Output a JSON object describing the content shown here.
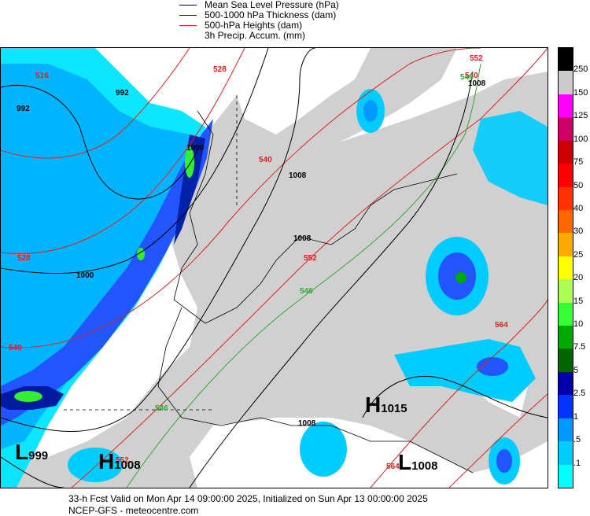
{
  "legend": {
    "items": [
      {
        "label": "Mean Sea Level Pressure (hPa)",
        "color": "#000000"
      },
      {
        "label": "500-1000 hPa Thickness (dam)",
        "color": "#0000cc"
      },
      {
        "label": "500-hPa Heights (dam)",
        "color": "#e02020"
      },
      {
        "label": "3h Precip. Accum. (mm)",
        "color": ""
      }
    ]
  },
  "colorbar": {
    "labels": [
      "250",
      "150",
      "125",
      "100",
      "75",
      "50",
      "40",
      "30",
      "25",
      "20",
      "15",
      "10",
      "7.5",
      "5",
      "2.5",
      "1",
      ".5",
      ".1"
    ],
    "colors": [
      "#000000",
      "#cccccc",
      "#ff00ff",
      "#cc0066",
      "#cc0000",
      "#ff0000",
      "#ff3300",
      "#ff6600",
      "#ffaa00",
      "#ffff00",
      "#aaff55",
      "#33ff33",
      "#00aa00",
      "#006600",
      "#0000aa",
      "#0033ff",
      "#0099ff",
      "#00ccff",
      "#00ffff"
    ]
  },
  "map_labels": {
    "isobars": [
      "992",
      "992",
      "1000",
      "1000",
      "1008",
      "1008",
      "1008",
      "1008"
    ],
    "heights": [
      "516",
      "528",
      "528",
      "540",
      "540",
      "540",
      "552",
      "552",
      "552",
      "564",
      "564"
    ],
    "thickness": [
      "546",
      "546",
      "546"
    ],
    "systems": [
      {
        "letter": "L",
        "value": "999"
      },
      {
        "letter": "H",
        "value": "1008"
      },
      {
        "letter": "H",
        "value": "1015"
      },
      {
        "letter": "L",
        "value": "1008"
      }
    ]
  },
  "footer": {
    "line1": "33-h Fcst Valid on Mon Apr 14 09:00:00 2025, Initialized on Sun Apr 13 00:00:00 2025",
    "line2": "NCEP-GFS  - meteocentre.com"
  }
}
